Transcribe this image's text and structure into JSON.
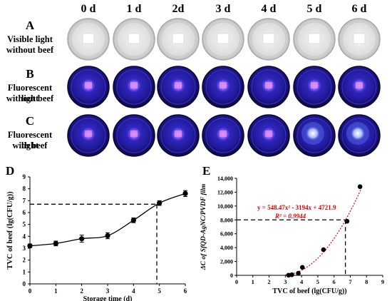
{
  "days": [
    "0 d",
    "1 d",
    "2d",
    "3 d",
    "4 d",
    "5 d",
    "6 d"
  ],
  "rows": [
    {
      "letter": "A",
      "caption_lines": [
        "Visible light",
        "without beef"
      ],
      "kind": "visible"
    },
    {
      "letter": "B",
      "caption_lines": [
        "Fluorescent light",
        "without beef"
      ],
      "kind": "fluor"
    },
    {
      "letter": "C",
      "caption_lines": [
        "Fluorescent light",
        "with beef"
      ],
      "kind": "fluor-beef"
    }
  ],
  "colors": {
    "dish_visible": "#d9d9d9",
    "dish_fluor": "#1f1a8f",
    "fluor_glow": "#6a5cff",
    "marker": "#000000",
    "fit_line": "#e00000",
    "equation": "#e00000",
    "dashed": "#000000"
  },
  "chart_data": [
    {
      "type": "line",
      "panel": "D",
      "xlabel": "Storage time (d)",
      "ylabel": "TVC of beef (lg(CFU/g))",
      "x": [
        0,
        1,
        2,
        3,
        4,
        5,
        6
      ],
      "y": [
        3.2,
        3.4,
        3.8,
        4.05,
        5.35,
        6.8,
        7.6
      ],
      "error": [
        0.15,
        0.2,
        0.3,
        0.25,
        0.2,
        0.2,
        0.25
      ],
      "xlim": [
        0,
        6
      ],
      "ylim": [
        0,
        9
      ],
      "xticks": [
        "0",
        "1",
        "2",
        "3",
        "4",
        "5",
        "6"
      ],
      "yticks": [
        "0",
        "1",
        "2",
        "3",
        "4",
        "5",
        "6",
        "7",
        "8",
        "9"
      ],
      "guide": {
        "x": 4.9,
        "y": 6.7
      },
      "grid": false
    },
    {
      "type": "scatter",
      "panel": "E",
      "xlabel": "TVC of beef (lg(CFU/g))",
      "ylabel": "ΔC of SfQD-AgNC/PVDF film",
      "x": [
        3.2,
        3.4,
        3.8,
        4.05,
        5.35,
        6.8,
        7.6
      ],
      "y": [
        20,
        80,
        300,
        1150,
        3700,
        7800,
        12800
      ],
      "fit": {
        "a": 548.47,
        "b": -3194,
        "c": 4721.9
      },
      "equation": "y = 548.47x² - 3194x + 4721.9",
      "r2": "R² = 0.9944",
      "xlim": [
        0,
        9
      ],
      "ylim": [
        0,
        14000
      ],
      "xticks": [
        "0",
        "1",
        "2",
        "3",
        "4",
        "5",
        "6",
        "7",
        "8",
        "9"
      ],
      "yticks": [
        "0",
        "2,000",
        "4,000",
        "6,000",
        "8,000",
        "10,000",
        "12,000",
        "14,000"
      ],
      "guide": {
        "x": 6.7,
        "y": 8000
      },
      "grid": false
    }
  ]
}
